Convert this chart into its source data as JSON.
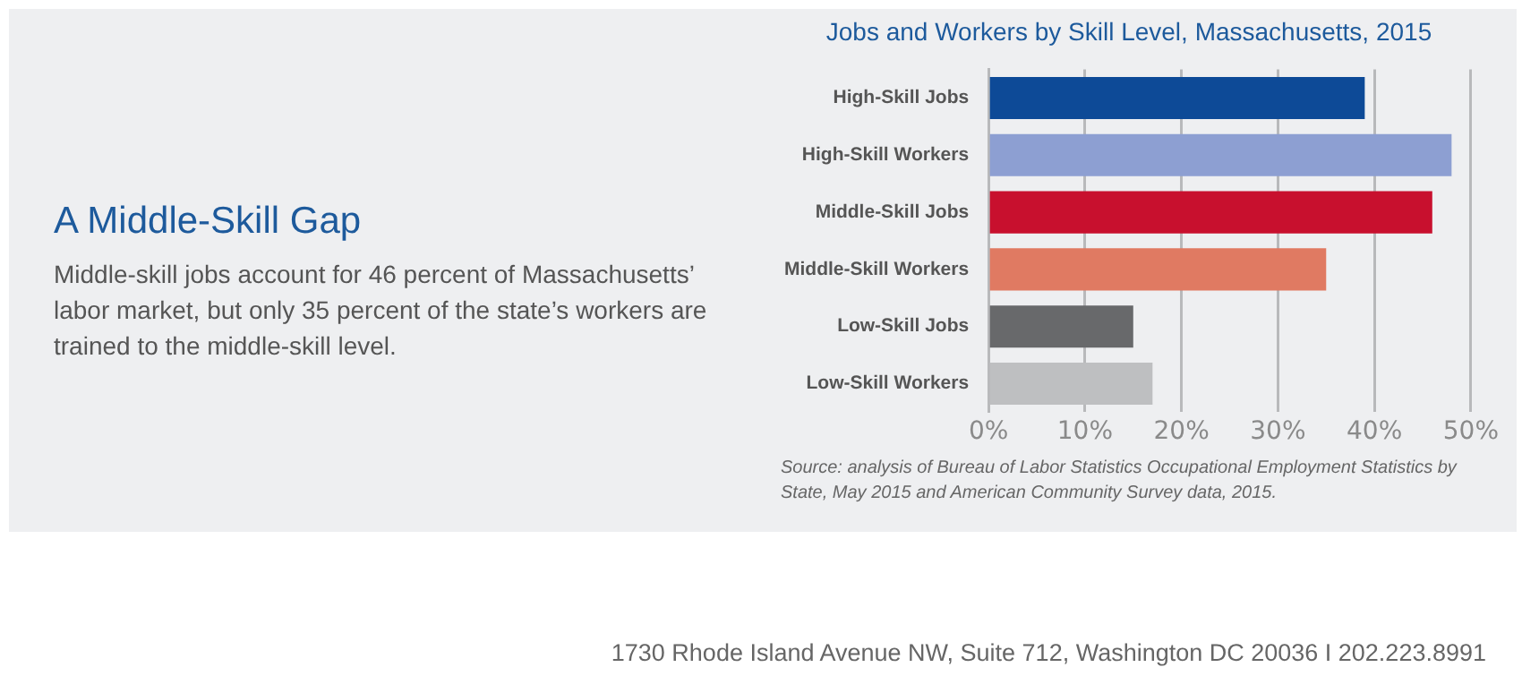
{
  "chart_data": {
    "type": "bar",
    "orientation": "horizontal",
    "title": "Jobs and Workers by Skill Level, Massachusetts, 2015",
    "categories": [
      "High-Skill Jobs",
      "High-Skill Workers",
      "Middle-Skill Jobs",
      "Middle-Skill Workers",
      "Low-Skill Jobs",
      "Low-Skill Workers"
    ],
    "values": [
      39,
      48,
      46,
      35,
      15,
      17
    ],
    "colors": [
      "#0d4a97",
      "#8d9fd2",
      "#c8102e",
      "#e07a62",
      "#68696b",
      "#bebfc1"
    ],
    "xlim": [
      0,
      50
    ],
    "xticks": [
      {
        "value": 0,
        "label": "0%"
      },
      {
        "value": 10,
        "label": "10%"
      },
      {
        "value": 20,
        "label": "20%"
      },
      {
        "value": 30,
        "label": "30%"
      },
      {
        "value": 40,
        "label": "40%"
      },
      {
        "value": 50,
        "label": "50%"
      }
    ],
    "grid": "x",
    "annotations": [
      "A Middle-Skill Gap",
      "Middle-skill jobs account for 46 percent of Massachusetts’ labor market, but only 35 percent of the state’s workers are trained to the middle-skill level.",
      "Source: analysis of Bureau of Labor Statistics Occupational Employment Statistics by State, May 2015 and American Community Survey data, 2015.",
      "1730 Rhode Island Avenue NW, Suite 712, Washington DC 20036 I 202.223.8991"
    ]
  }
}
